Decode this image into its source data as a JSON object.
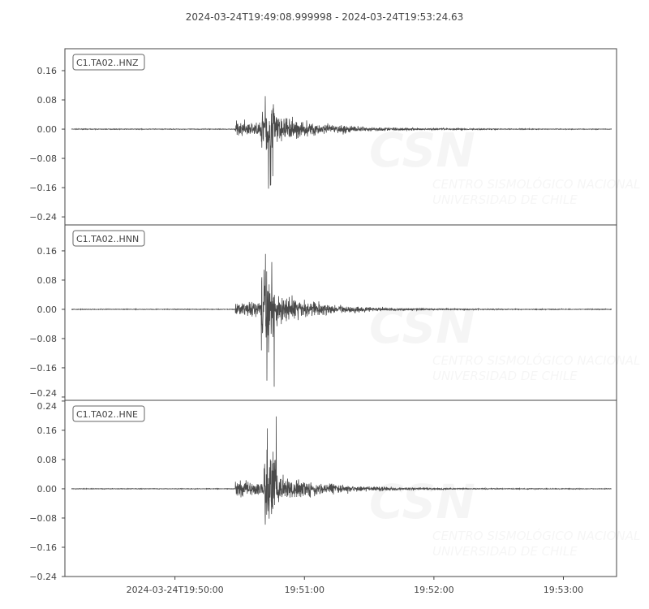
{
  "chart_data": {
    "type": "line",
    "title": "2024-03-24T19:49:08.999998  -  2024-03-24T19:53:24.63",
    "x_start": "2024-03-24T19:49:08.999998",
    "x_end": "2024-03-24T19:53:24.63",
    "x_ticks": [
      {
        "time": "19:50:00",
        "label": "2024-03-24T19:50:00"
      },
      {
        "time": "19:51:00",
        "label": "19:51:00"
      },
      {
        "time": "19:52:00",
        "label": "19:52:00"
      },
      {
        "time": "19:53:00",
        "label": "19:53:00"
      }
    ],
    "line_color": "#4a4a4a",
    "traces": [
      {
        "name": "C1.TA02..HNZ",
        "ylim": [
          -0.262,
          0.22
        ],
        "y_ticks": [
          "0.16",
          "0.08",
          "0.00",
          "−0.08",
          "−0.16",
          "−0.24"
        ],
        "y_tick_values": [
          0.16,
          0.08,
          0,
          -0.08,
          -0.16,
          -0.24
        ],
        "onset": "19:50:28",
        "peak_time": "19:50:42",
        "max": 0.13,
        "min": -0.18
      },
      {
        "name": "C1.TA02..HNN",
        "ylim": [
          -0.249,
          0.231
        ],
        "y_ticks": [
          "0.16",
          "0.08",
          "0.00",
          "−0.08",
          "−0.16",
          "−0.24"
        ],
        "y_tick_values": [
          0.16,
          0.08,
          0,
          -0.08,
          -0.16,
          -0.24
        ],
        "onset": "19:50:28",
        "peak_time": "19:50:42",
        "max": 0.21,
        "min": -0.22
      },
      {
        "name": "C1.TA02..HNE",
        "ylim": [
          -0.24,
          0.242
        ],
        "y_ticks": [
          "0.24",
          "0.16",
          "0.08",
          "0.00",
          "−0.08",
          "−0.16",
          "−0.24"
        ],
        "y_tick_values": [
          0.24,
          0.16,
          0.08,
          0,
          -0.08,
          -0.16,
          -0.24
        ],
        "onset": "19:50:28",
        "peak_time": "19:50:43",
        "max": 0.21,
        "min": -0.21
      }
    ]
  },
  "watermark": {
    "logo": "CSN",
    "line1": "CENTRO SISMOLÓGICO NACIONAL",
    "line2": "UNIVERSIDAD DE CHILE"
  }
}
